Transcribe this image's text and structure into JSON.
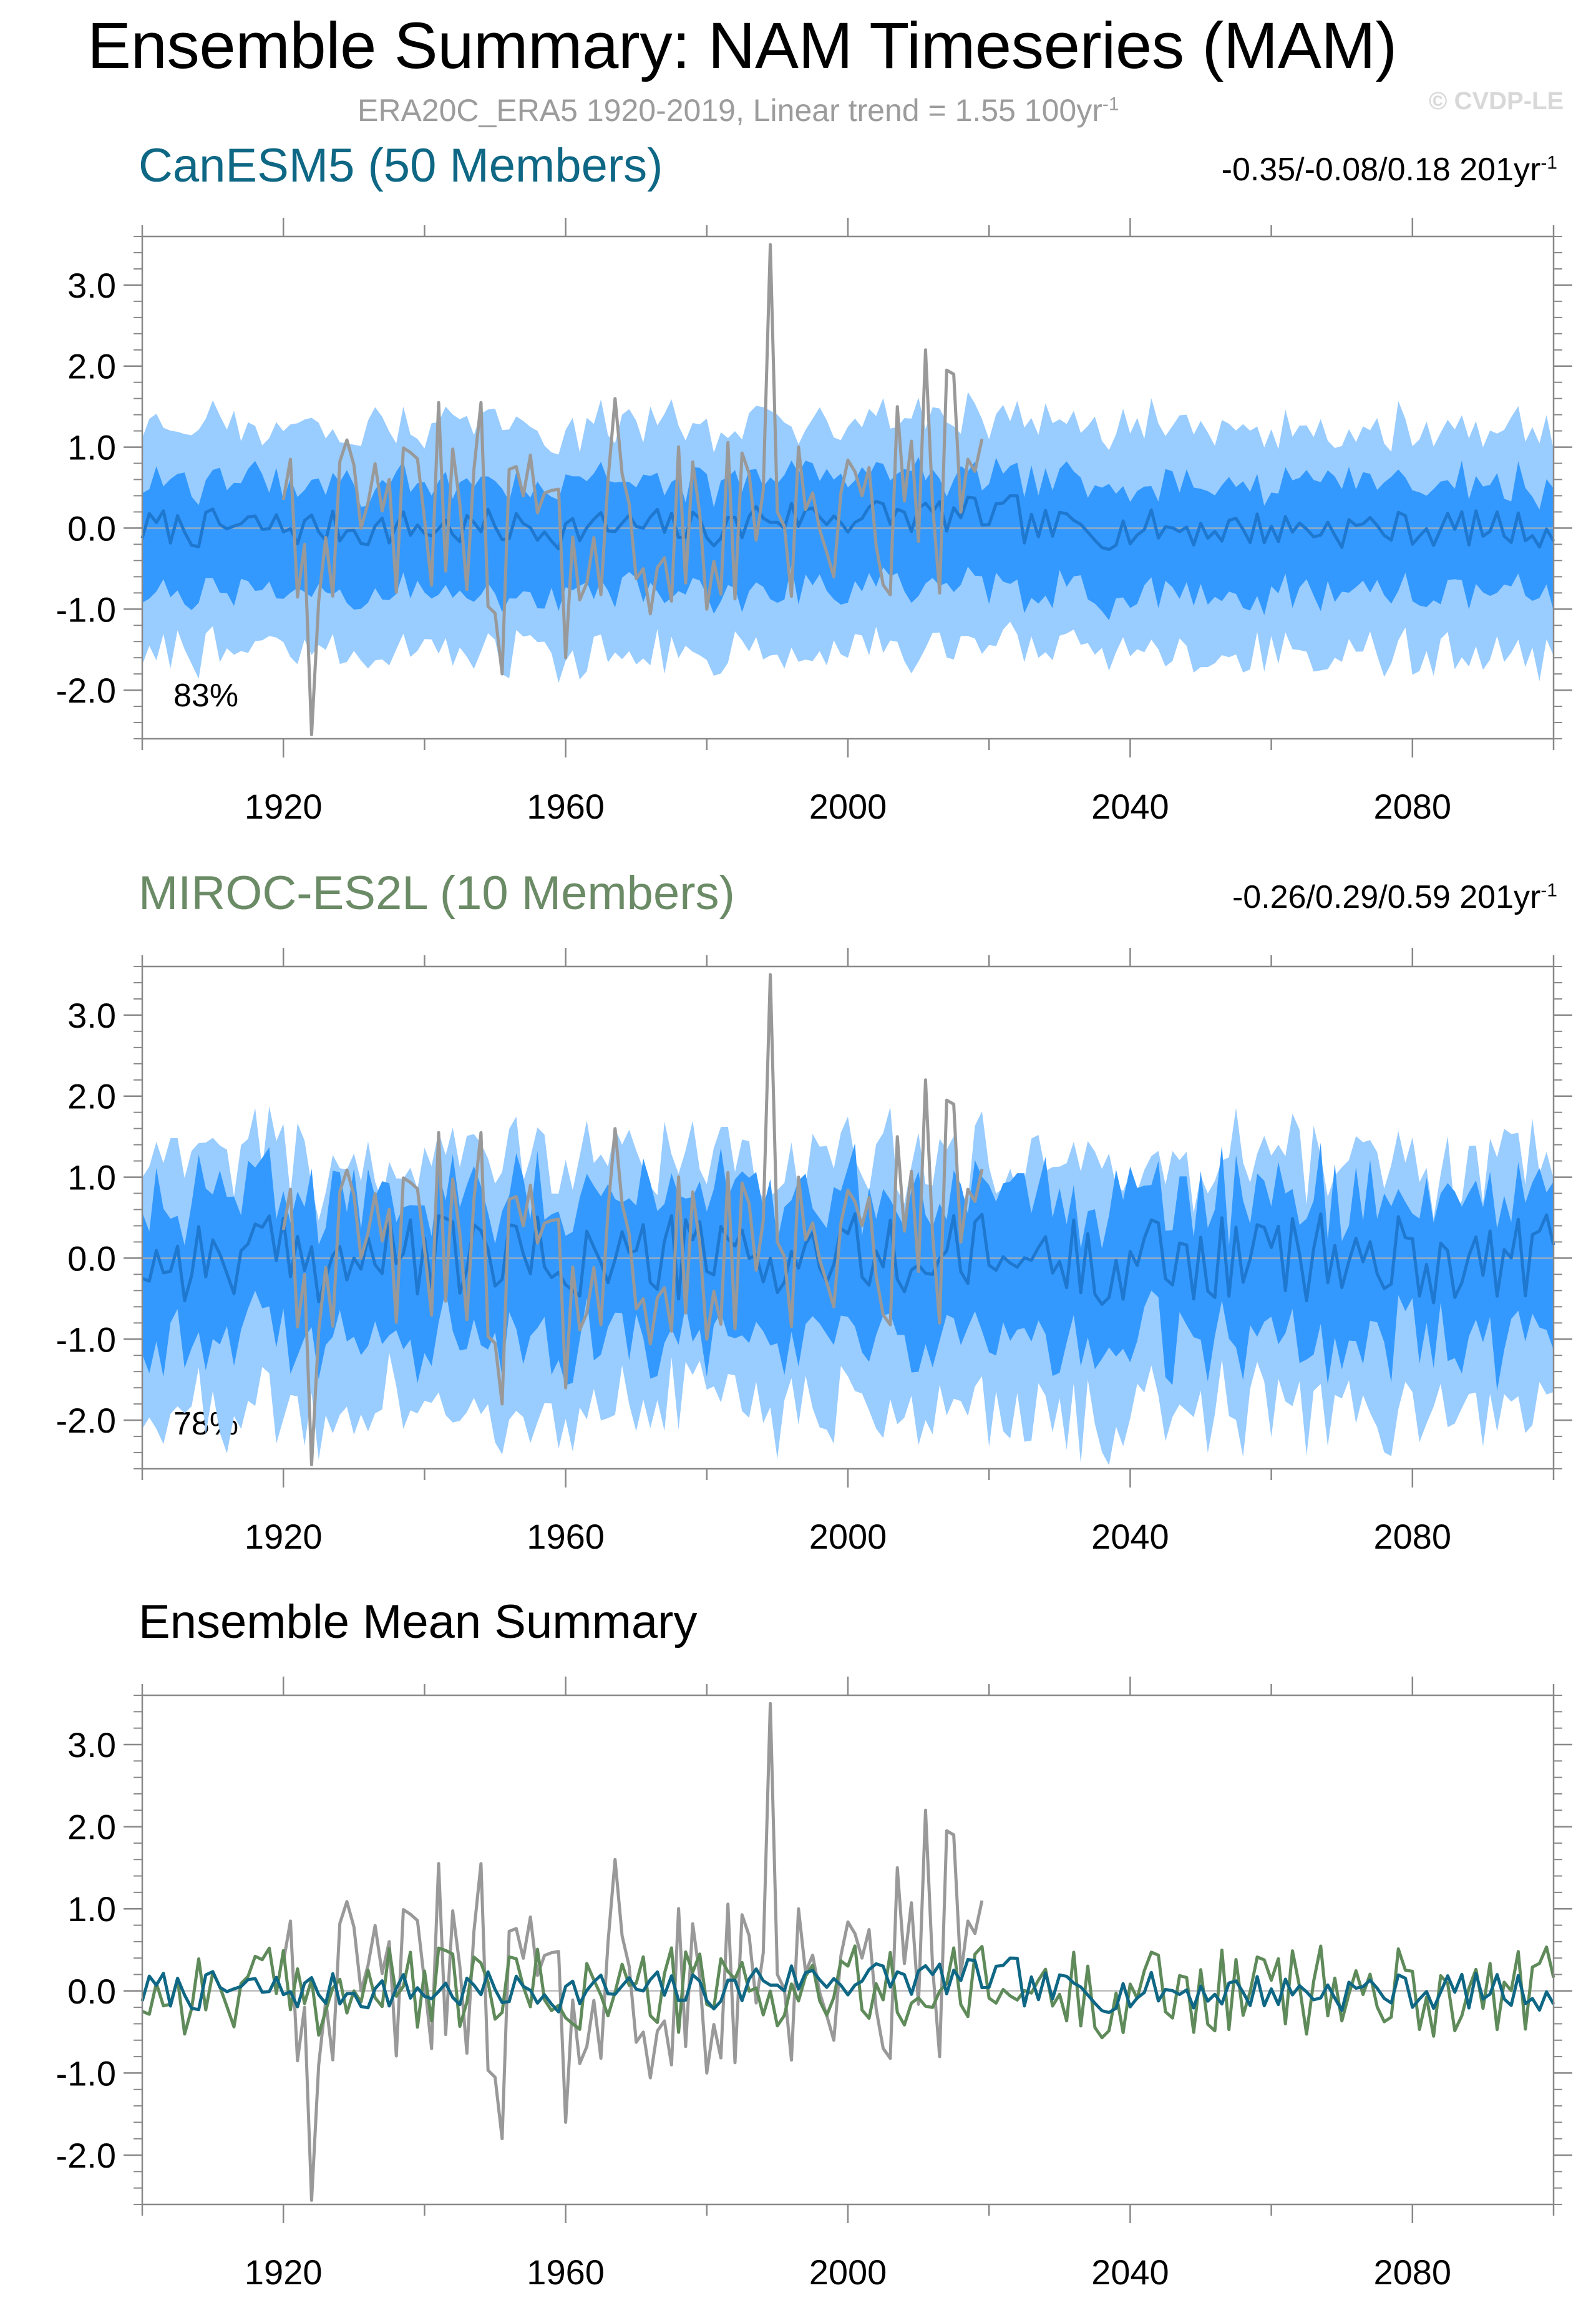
{
  "page": {
    "title": "Ensemble Summary: NAM Timeseries (MAM)",
    "subtitle_text": "ERA20C_ERA5 1920-2019, Linear trend = 1.55 100yr",
    "subtitle_exp": "-1",
    "watermark": "© CVDP-LE"
  },
  "colors": {
    "observed": "#999999",
    "canesm5_dark": "#3399ff",
    "canesm5_light": "#99ccff",
    "canesm5_mean": "#1f78d0",
    "canesm5_title": "#0e6784",
    "miroc_title": "#6b8b66",
    "miroc_mean_line": "#5f8a5a",
    "canesm5_mean_line": "#0e6784"
  },
  "chart_data": [
    {
      "type": "area",
      "title": "CanESM5 (50 Members)",
      "trend_text": "-0.35/-0.08/0.18 201yr",
      "trend_exp": "-1",
      "percent_label": "83%",
      "xlim": [
        1900,
        2100
      ],
      "ylim": [
        -2.6,
        3.6
      ],
      "xticks": [
        1920,
        1960,
        2000,
        2040,
        2080
      ],
      "yticks": [
        -2.0,
        -1.0,
        0.0,
        1.0,
        2.0,
        3.0
      ],
      "ytick_labels": [
        "-2.0",
        "-1.0",
        "0.0",
        "1.0",
        "2.0",
        "3.0"
      ],
      "series": [
        {
          "role": "outer_band",
          "lower": -1.55,
          "upper": 1.25,
          "variability": 0.25
        },
        {
          "role": "inner_band",
          "lower": -0.8,
          "upper": 0.55,
          "variability": 0.2
        },
        {
          "role": "ensemble_mean",
          "values_summary": "near 0, range -0.35 to 0.35"
        },
        {
          "role": "observed",
          "x_range": [
            1920,
            2019
          ],
          "min": -2.55,
          "max": 3.5
        }
      ]
    },
    {
      "type": "area",
      "title": "MIROC-ES2L (10 Members)",
      "trend_text": "-0.26/0.29/0.59 201yr",
      "trend_exp": "-1",
      "percent_label": "78%",
      "xlim": [
        1900,
        2100
      ],
      "ylim": [
        -2.6,
        3.6
      ],
      "xticks": [
        1920,
        1960,
        2000,
        2040,
        2080
      ],
      "yticks": [
        -2.0,
        -1.0,
        0.0,
        1.0,
        2.0,
        3.0
      ],
      "ytick_labels": [
        "-2.0",
        "-1.0",
        "0.0",
        "1.0",
        "2.0",
        "3.0"
      ],
      "series": [
        {
          "role": "outer_band",
          "lower": -1.9,
          "upper": 1.2,
          "variability": 0.45
        },
        {
          "role": "inner_band",
          "lower": -1.0,
          "upper": 0.75,
          "variability": 0.4
        },
        {
          "role": "ensemble_mean",
          "values_summary": "range -0.8 to 0.7"
        },
        {
          "role": "observed",
          "x_range": [
            1920,
            2019
          ],
          "min": -2.55,
          "max": 3.5
        }
      ]
    },
    {
      "type": "line",
      "title": "Ensemble Mean Summary",
      "xlim": [
        1900,
        2100
      ],
      "ylim": [
        -2.6,
        3.6
      ],
      "xticks": [
        1920,
        1960,
        2000,
        2040,
        2080
      ],
      "yticks": [
        -2.0,
        -1.0,
        0.0,
        1.0,
        2.0,
        3.0
      ],
      "ytick_labels": [
        "-2.0",
        "-1.0",
        "0.0",
        "1.0",
        "2.0",
        "3.0"
      ],
      "series": [
        {
          "role": "observed"
        },
        {
          "role": "canesm5_mean"
        },
        {
          "role": "miroc_mean"
        }
      ]
    }
  ]
}
